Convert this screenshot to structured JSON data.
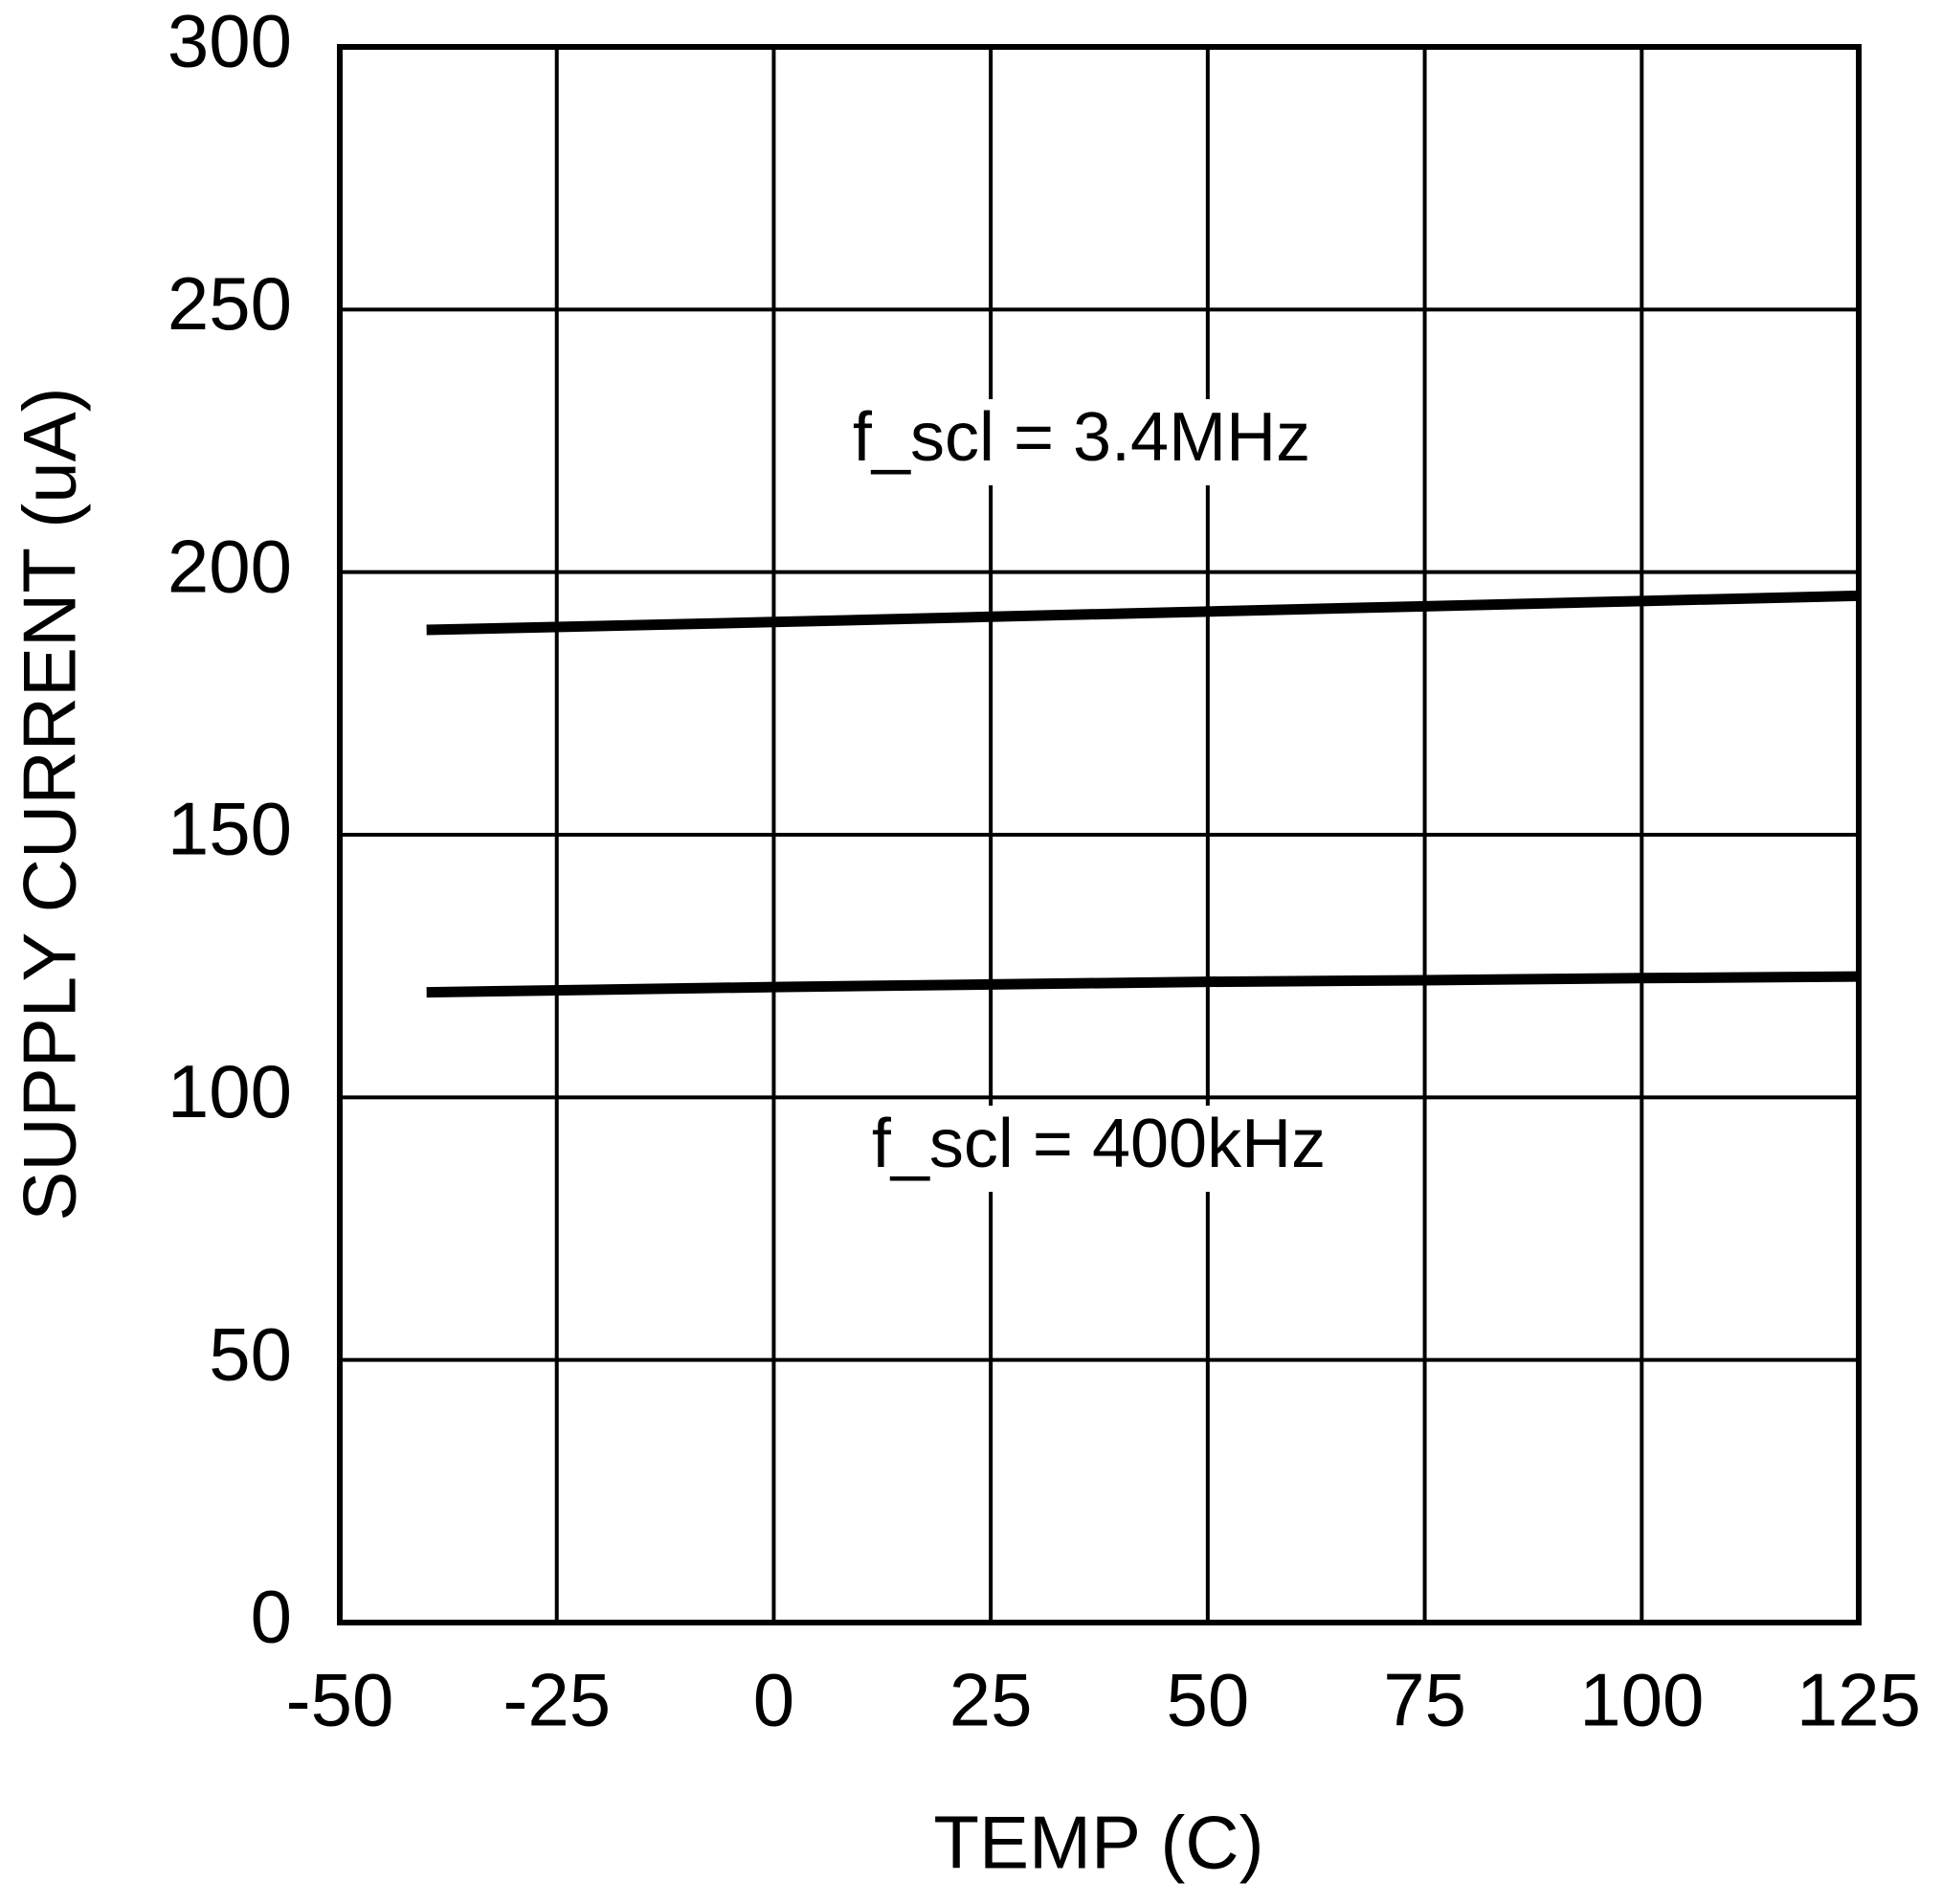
{
  "chart_data": {
    "type": "line",
    "xlabel": "TEMP (C)",
    "ylabel": "SUPPLY CURRENT (uA)",
    "x": [
      -40,
      0,
      25,
      50,
      75,
      100,
      125
    ],
    "series": [
      {
        "name": "f_scl = 3.4MHz",
        "color": "#000000",
        "values": [
          189,
          190.5,
          191.5,
          192.5,
          193.5,
          194.5,
          195.5
        ]
      },
      {
        "name": "f_scl = 400kHz",
        "color": "#000000",
        "values": [
          120,
          121,
          121.5,
          122,
          122.3,
          122.7,
          123
        ]
      }
    ],
    "xlim": [
      -50,
      125
    ],
    "xticks": [
      -50,
      -25,
      0,
      25,
      50,
      75,
      100,
      125
    ],
    "ylim": [
      0,
      300
    ],
    "yticks": [
      0,
      50,
      100,
      150,
      200,
      250,
      300
    ],
    "grid": true
  }
}
